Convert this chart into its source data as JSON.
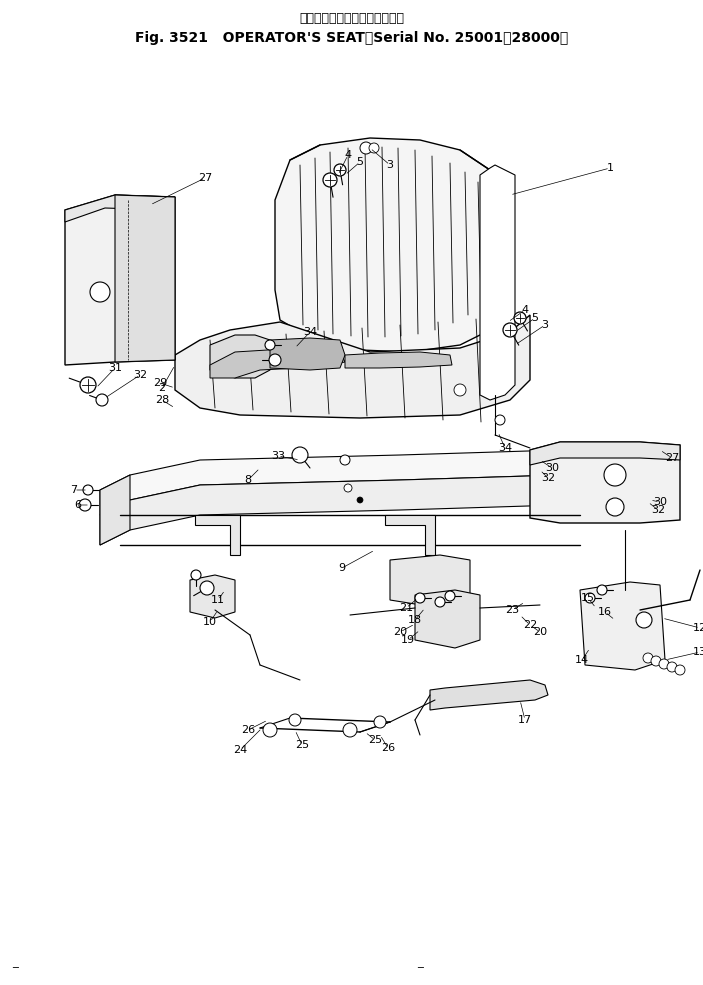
{
  "title_jp": "オペレータ　シート（適用号機",
  "title_en": "Fig. 3521   OPERATOR'S SEAT （Serial No. 25001～28000）",
  "bg_color": "#ffffff",
  "line_color": "#000000",
  "text_color": "#000000",
  "fig_width": 7.03,
  "fig_height": 9.85,
  "dpi": 100
}
